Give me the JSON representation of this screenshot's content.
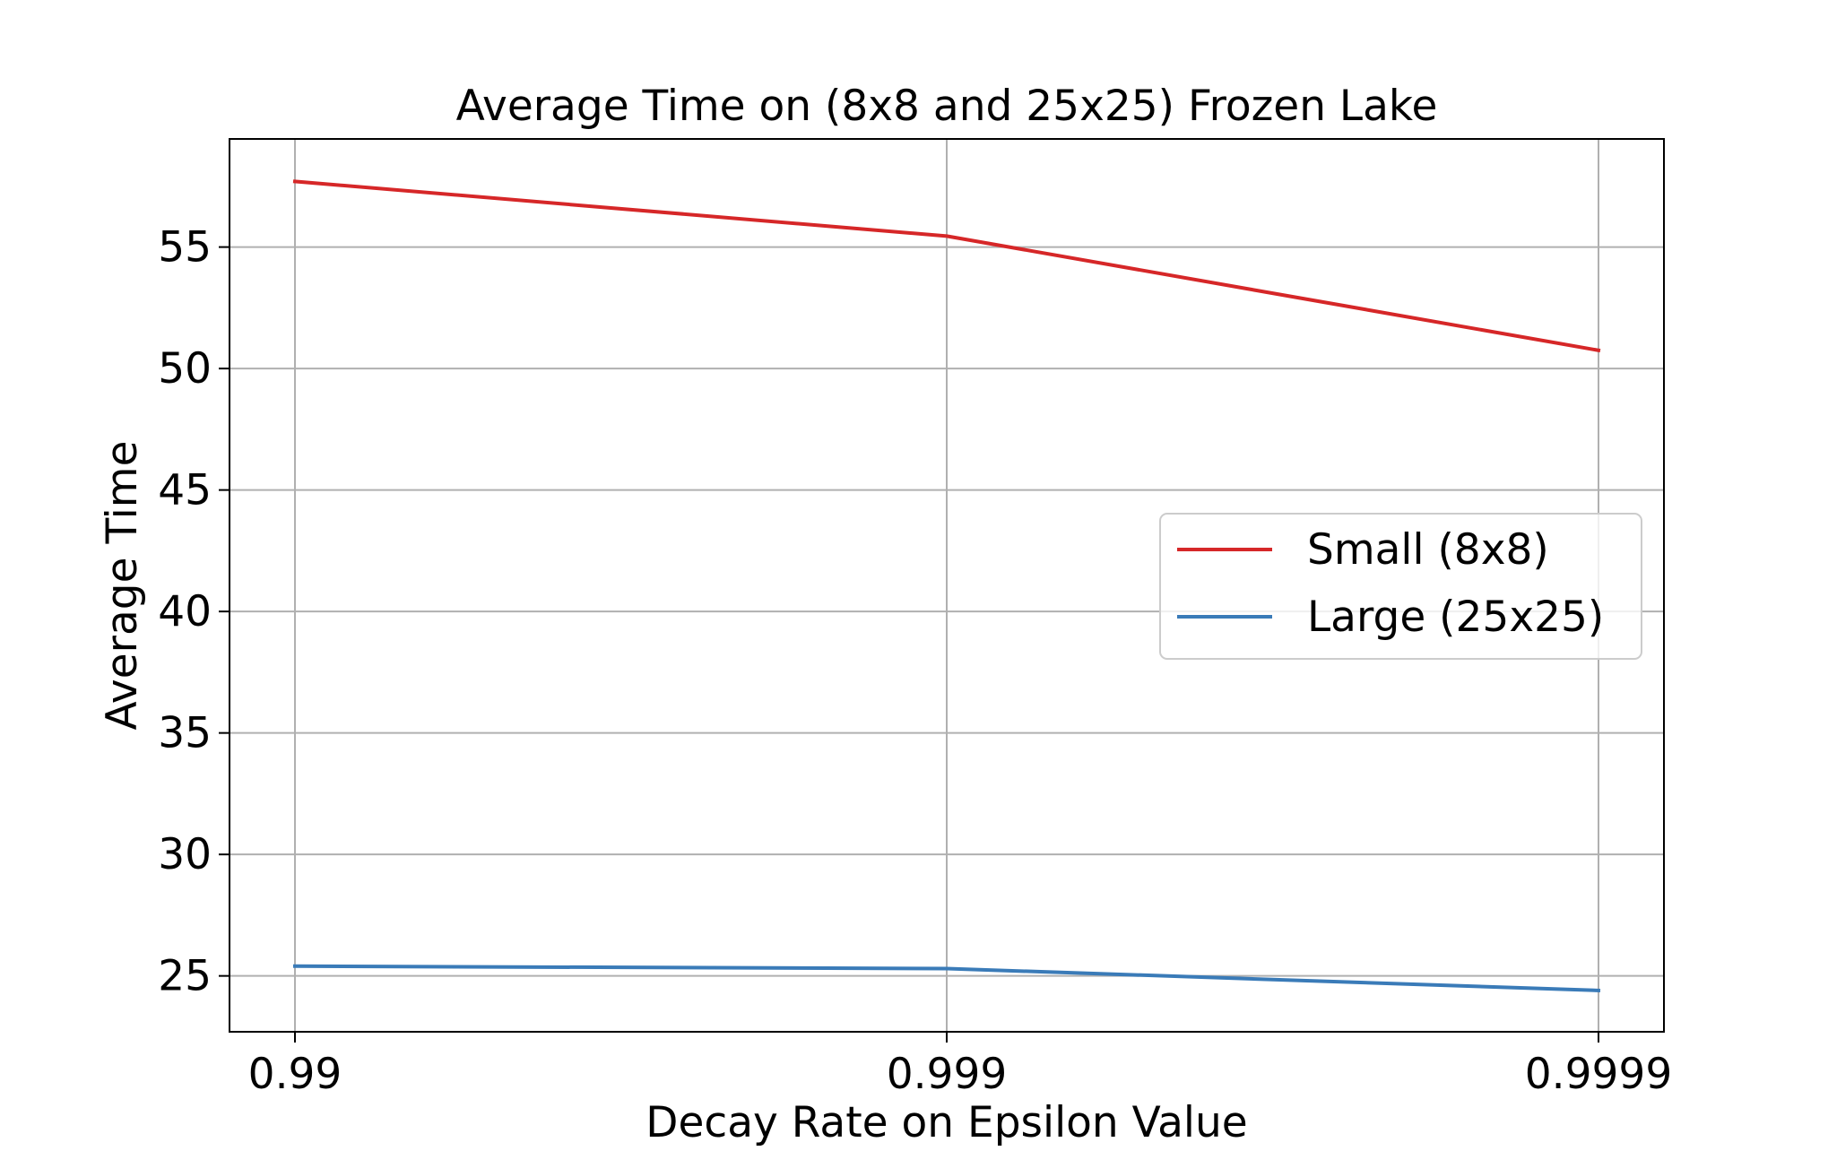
{
  "chart_data": {
    "type": "line",
    "title": "Average Time on (8x8 and 25x25) Frozen Lake",
    "xlabel": "Decay Rate on Epsilon Value",
    "ylabel": "Average Time",
    "categories": [
      "0.99",
      "0.999",
      "0.9999"
    ],
    "series": [
      {
        "name": "Small (8x8)",
        "color": "#d62728",
        "values": [
          57.7,
          55.45,
          50.75
        ]
      },
      {
        "name": "Large (25x25)",
        "color": "#3a7bb8",
        "values": [
          25.4,
          25.3,
          24.4
        ]
      }
    ],
    "ylim": [
      22.7,
      59.45
    ],
    "yticks": [
      25,
      30,
      35,
      40,
      45,
      50,
      55
    ],
    "grid": true,
    "legend_position": "center-right"
  }
}
